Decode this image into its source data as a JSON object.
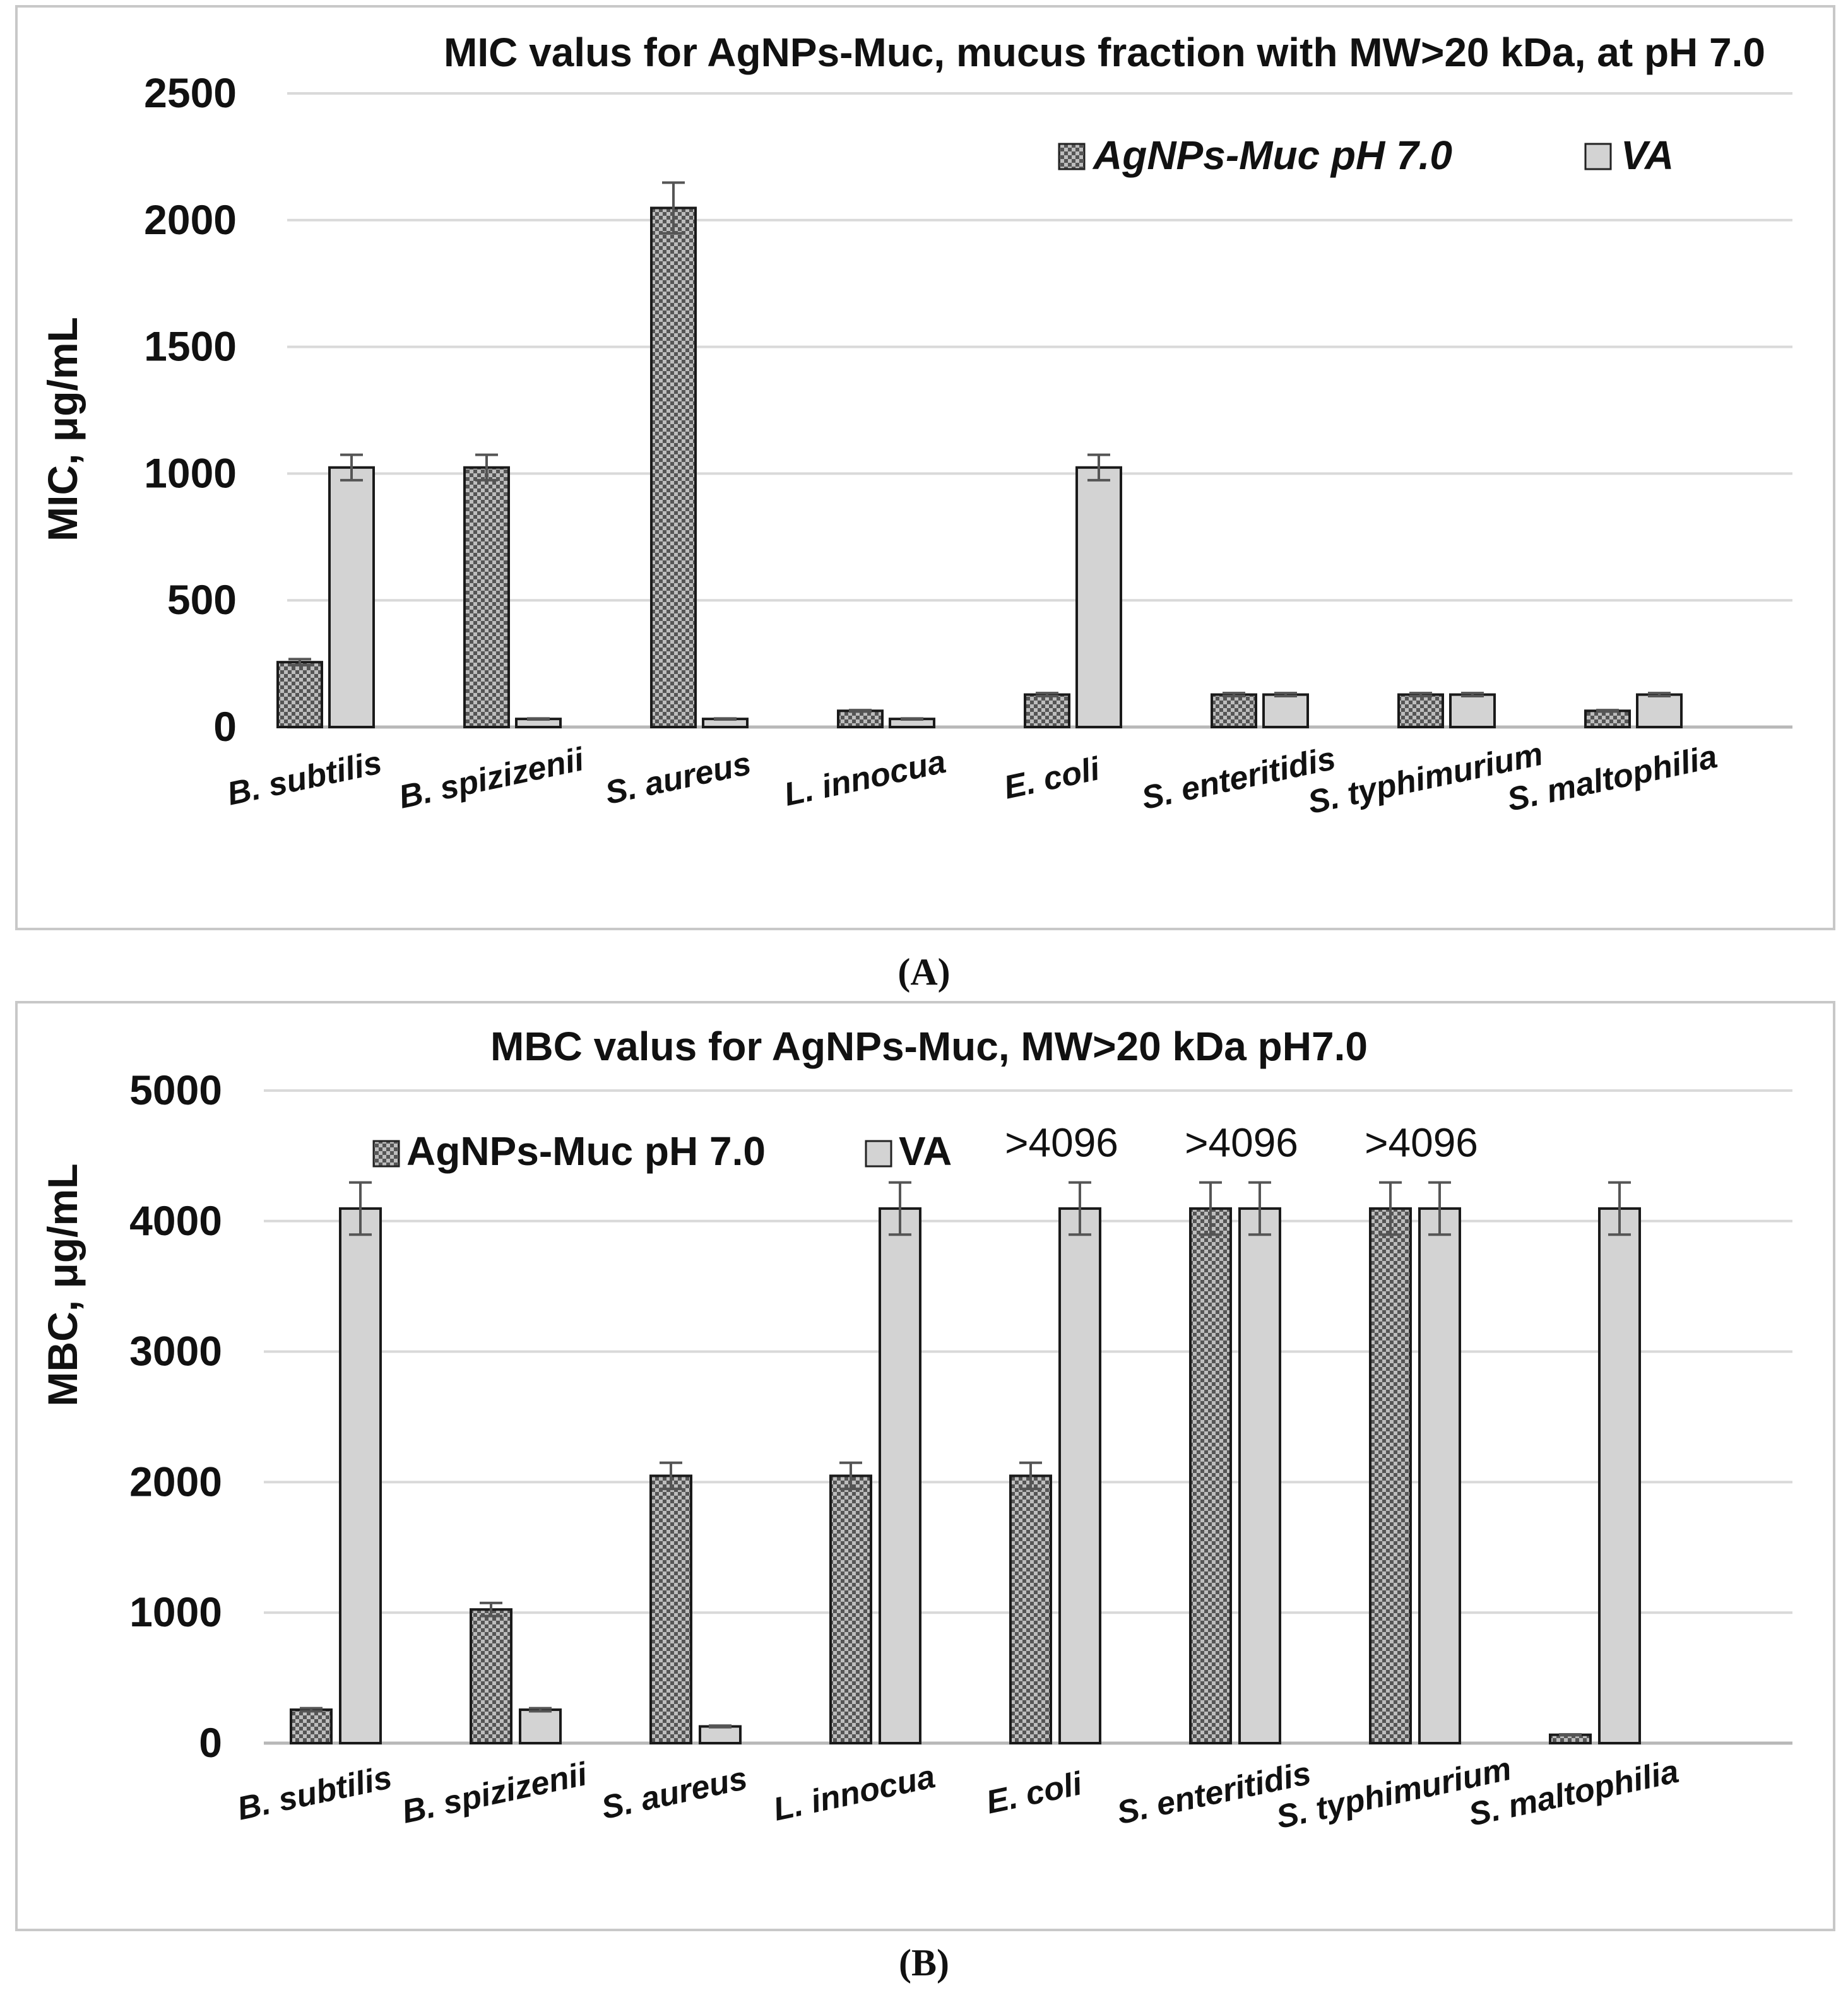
{
  "chart_data": [
    {
      "type": "bar",
      "panel_label": "(A)",
      "title": "MIC valus for AgNPs-Muc, mucus fraction with MW>20 kDa, at pH 7.0",
      "ylabel": "MIC, μg/mL",
      "xlabel": "",
      "ylim": [
        0,
        2500
      ],
      "yticks": [
        0,
        500,
        1000,
        1500,
        2000,
        2500
      ],
      "grid": true,
      "legend_position": "top-right",
      "legend_italic": true,
      "categories": [
        "B. subtilis",
        "B. spizizenii",
        "S. aureus",
        "L. innocua",
        "E. coli",
        "S. enteritidis",
        "S. typhimurium",
        "S. maltophilia"
      ],
      "series": [
        {
          "name": "AgNPs-Muc pH 7.0",
          "pattern": "checker",
          "values": [
            256,
            1024,
            2048,
            64,
            128,
            128,
            128,
            64
          ],
          "errors": [
            12,
            50,
            100,
            3,
            6,
            6,
            6,
            3
          ]
        },
        {
          "name": "VA",
          "pattern": "solid",
          "values": [
            1024,
            32,
            32,
            32,
            1024,
            128,
            128,
            128
          ],
          "errors": [
            50,
            2,
            2,
            2,
            50,
            6,
            6,
            6
          ]
        }
      ],
      "annotations": []
    },
    {
      "type": "bar",
      "panel_label": "(B)",
      "title": "MBC valus for AgNPs-Muc, MW>20 kDa pH7.0",
      "ylabel": "MBC, μg/mL",
      "xlabel": "",
      "ylim": [
        0,
        5000
      ],
      "yticks": [
        0,
        1000,
        2000,
        3000,
        4000,
        5000
      ],
      "grid": true,
      "legend_position": "top-left",
      "legend_italic": false,
      "categories": [
        "B. subtilis",
        "B. spizizenii",
        "S. aureus",
        "L. innocua",
        "E. coli",
        "S. enteritidis",
        "S. typhimurium",
        "S. maltophilia"
      ],
      "series": [
        {
          "name": "AgNPs-Muc pH 7.0",
          "pattern": "checker",
          "values": [
            256,
            1024,
            2048,
            2048,
            2048,
            4096,
            4096,
            64
          ],
          "errors": [
            12,
            50,
            100,
            100,
            100,
            200,
            200,
            3
          ]
        },
        {
          "name": "VA",
          "pattern": "solid",
          "values": [
            4096,
            256,
            128,
            4096,
            4096,
            4096,
            4096,
            4096
          ],
          "errors": [
            200,
            12,
            6,
            200,
            200,
            200,
            200,
            200
          ]
        }
      ],
      "annotations": [
        {
          "text": ">4096",
          "category_index": 4,
          "value": 4600
        },
        {
          "text": ">4096",
          "category_index": 5,
          "value": 4600
        },
        {
          "text": ">4096",
          "category_index": 6,
          "value": 4600
        }
      ]
    }
  ]
}
